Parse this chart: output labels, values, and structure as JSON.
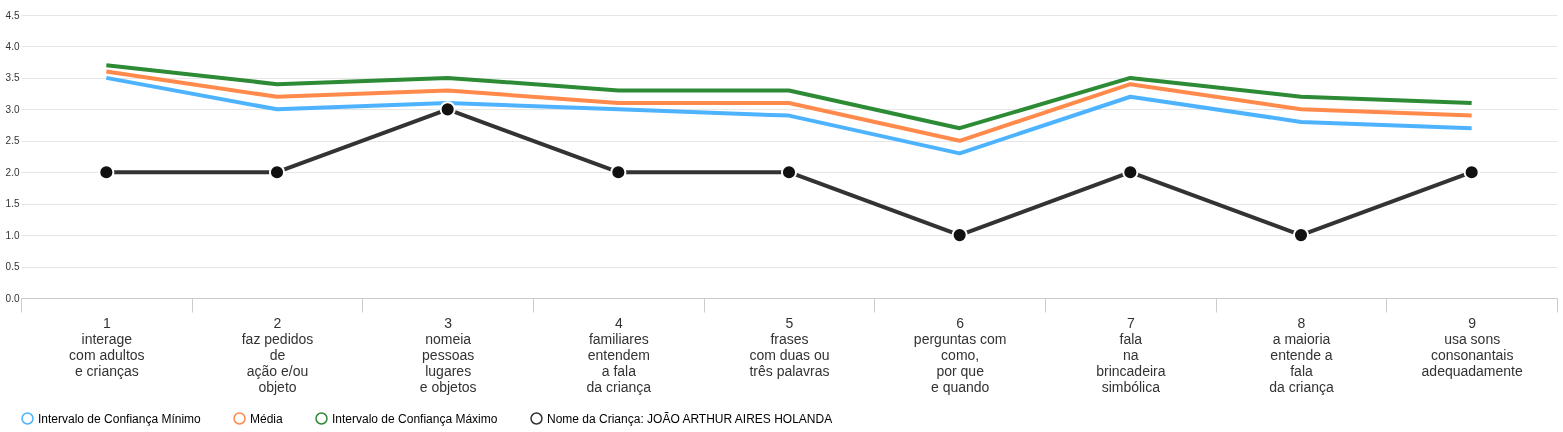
{
  "chart_data": {
    "type": "line",
    "categories": [
      "1\ninterage\ncom adultos\ne crianças",
      "2\nfaz pedidos\nde\nação e/ou\nobjeto",
      "3\nnomeia\npessoas\nlugares\ne objetos",
      "4\nfamiliares\nentendem\na fala\nda criança",
      "5\nfrases\ncom duas ou\ntrês palavras",
      "6\nperguntas com\ncomo,\npor que\ne quando",
      "7\nfala\nna\nbrincadeira\nsimbólica",
      "8\na maioria\nentende a\nfala\nda criança",
      "9\nusa sons\nconsonantais\nadequadamente"
    ],
    "series": [
      {
        "name": "Intervalo de Confiança Mínimo",
        "color": "#4db3ff",
        "marker": "none",
        "values": [
          3.5,
          3.0,
          3.1,
          3.0,
          2.9,
          2.3,
          3.2,
          2.8,
          2.7
        ]
      },
      {
        "name": "Média",
        "color": "#ff8a4c",
        "marker": "none",
        "values": [
          3.6,
          3.2,
          3.3,
          3.1,
          3.1,
          2.5,
          3.4,
          3.0,
          2.9
        ]
      },
      {
        "name": "Intervalo de Confiança Máximo",
        "color": "#2e8b35",
        "marker": "none",
        "values": [
          3.7,
          3.4,
          3.5,
          3.3,
          3.3,
          2.7,
          3.5,
          3.2,
          3.1
        ]
      },
      {
        "name": "Nome da Criança: JOÃO ARTHUR AIRES HOLANDA",
        "color": "#333333",
        "marker": "circle",
        "values": [
          2,
          2,
          3,
          2,
          2,
          1,
          2,
          1,
          2
        ]
      }
    ],
    "ylim": [
      0,
      4.5
    ],
    "yticks": [
      {
        "value": 0,
        "label": "0.0"
      },
      0.5,
      {
        "value": 1,
        "label": "1.0"
      },
      1.5,
      {
        "value": 2,
        "label": "2.0"
      },
      2.5,
      {
        "value": 3,
        "label": "3.0"
      },
      3.5,
      {
        "value": 4,
        "label": "4.0"
      },
      4.5
    ],
    "grid": "y",
    "legend": "bottom",
    "line_style": "solid"
  }
}
